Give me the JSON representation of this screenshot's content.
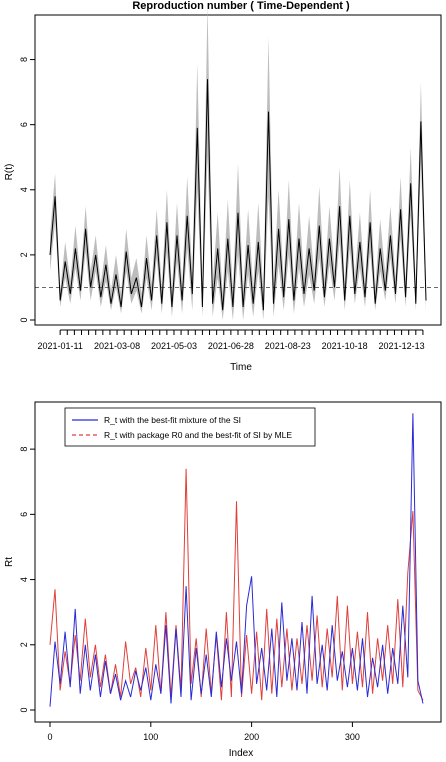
{
  "chart_data": [
    {
      "type": "line",
      "title": "Reproduction number ( Time-Dependent )",
      "xlabel": "Time",
      "ylabel": "R(t)",
      "x_tick_labels": [
        "2021-01-11",
        "2021-03-08",
        "2021-05-03",
        "2021-06-28",
        "2021-08-23",
        "2021-10-18",
        "2021-12-13"
      ],
      "x_range": [
        "2021-01-01",
        "2022-01-08"
      ],
      "ylim": [
        0,
        9
      ],
      "y_ticks": [
        0,
        2,
        4,
        6,
        8
      ],
      "reference_line": 1,
      "grid": false,
      "colors": {
        "estimate": "#000000",
        "band": "#bdbdbd",
        "reference": "#555555"
      },
      "series": [
        {
          "x": [
            "2021-01-01",
            "2021-01-06",
            "2021-01-11",
            "2021-01-16",
            "2021-01-21",
            "2021-01-26",
            "2021-01-31",
            "2021-02-05",
            "2021-02-10",
            "2021-02-15",
            "2021-02-20",
            "2021-02-25",
            "2021-03-02",
            "2021-03-07",
            "2021-03-12",
            "2021-03-17",
            "2021-03-22",
            "2021-03-27",
            "2021-04-01",
            "2021-04-06",
            "2021-04-11",
            "2021-04-16",
            "2021-04-21",
            "2021-04-26",
            "2021-05-01",
            "2021-05-06",
            "2021-05-11",
            "2021-05-16",
            "2021-05-21",
            "2021-05-26",
            "2021-05-31",
            "2021-06-05",
            "2021-06-10",
            "2021-06-15",
            "2021-06-20",
            "2021-06-25",
            "2021-06-30",
            "2021-07-05",
            "2021-07-10",
            "2021-07-15",
            "2021-07-20",
            "2021-07-25",
            "2021-07-30",
            "2021-08-04",
            "2021-08-09",
            "2021-08-14",
            "2021-08-19",
            "2021-08-24",
            "2021-08-29",
            "2021-09-03",
            "2021-09-08",
            "2021-09-13",
            "2021-09-18",
            "2021-09-23",
            "2021-09-28",
            "2021-10-03",
            "2021-10-08",
            "2021-10-13",
            "2021-10-18",
            "2021-10-23",
            "2021-10-28",
            "2021-11-02",
            "2021-11-07",
            "2021-11-12",
            "2021-11-17",
            "2021-11-22",
            "2021-11-27",
            "2021-12-02",
            "2021-12-07",
            "2021-12-12",
            "2021-12-17",
            "2021-12-22",
            "2021-12-27",
            "2022-01-01",
            "2022-01-06"
          ],
          "y": [
            2.0,
            3.8,
            0.6,
            1.8,
            0.8,
            2.2,
            0.9,
            2.8,
            1.0,
            2.0,
            0.7,
            1.7,
            0.5,
            1.4,
            0.4,
            2.1,
            0.8,
            1.3,
            0.4,
            1.9,
            0.6,
            2.6,
            0.5,
            3.0,
            0.4,
            2.6,
            0.6,
            3.2,
            0.8,
            5.9,
            0.4,
            7.4,
            0.5,
            2.2,
            0.3,
            2.5,
            0.4,
            3.3,
            0.4,
            2.3,
            0.5,
            2.4,
            0.3,
            6.4,
            0.5,
            2.8,
            0.7,
            3.1,
            0.6,
            2.5,
            0.8,
            2.2,
            0.9,
            2.9,
            0.7,
            2.5,
            1.0,
            3.5,
            0.6,
            3.2,
            0.8,
            2.4,
            0.7,
            3.0,
            0.5,
            2.2,
            0.9,
            2.6,
            0.8,
            3.4,
            0.7,
            4.2,
            0.5,
            6.1,
            0.6
          ],
          "lower": [
            1.5,
            3.0,
            0.4,
            1.3,
            0.5,
            1.6,
            0.6,
            2.1,
            0.6,
            1.5,
            0.4,
            1.2,
            0.3,
            1.0,
            0.2,
            1.5,
            0.5,
            0.9,
            0.2,
            1.3,
            0.3,
            1.9,
            0.2,
            2.1,
            0.1,
            1.8,
            0.2,
            2.2,
            0.3,
            4.0,
            0.1,
            5.0,
            0.1,
            1.3,
            0.0,
            1.5,
            0.0,
            2.0,
            0.0,
            1.4,
            0.1,
            1.5,
            0.0,
            3.8,
            0.1,
            1.7,
            0.3,
            2.0,
            0.2,
            1.6,
            0.4,
            1.4,
            0.5,
            1.9,
            0.4,
            1.7,
            0.6,
            2.4,
            0.3,
            2.2,
            0.5,
            1.6,
            0.4,
            2.1,
            0.3,
            1.5,
            0.6,
            1.9,
            0.5,
            2.5,
            0.4,
            3.2,
            0.3,
            4.8,
            0.3
          ],
          "upper": [
            2.6,
            4.5,
            0.9,
            2.4,
            1.2,
            2.9,
            1.3,
            3.5,
            1.5,
            2.6,
            1.1,
            2.3,
            0.9,
            2.0,
            0.8,
            2.8,
            1.3,
            1.9,
            0.8,
            2.6,
            1.1,
            3.4,
            1.0,
            4.0,
            0.9,
            3.6,
            1.1,
            4.4,
            1.4,
            7.9,
            0.9,
            9.7,
            1.1,
            3.3,
            0.8,
            3.7,
            0.9,
            4.8,
            0.9,
            3.4,
            1.0,
            3.6,
            0.8,
            8.7,
            1.1,
            4.0,
            1.2,
            4.3,
            1.1,
            3.6,
            1.3,
            3.2,
            1.4,
            4.1,
            1.2,
            3.5,
            1.5,
            4.7,
            1.1,
            4.3,
            1.3,
            3.3,
            1.1,
            4.0,
            1.0,
            3.1,
            1.4,
            3.5,
            1.3,
            4.4,
            1.2,
            5.3,
            1.0,
            7.3,
            1.0
          ]
        }
      ]
    },
    {
      "type": "line",
      "title": "",
      "xlabel": "Index",
      "ylabel": "Rt",
      "xlim": [
        0,
        375
      ],
      "x_ticks": [
        0,
        100,
        200,
        300
      ],
      "ylim": [
        0,
        9.2
      ],
      "y_ticks": [
        0,
        2,
        4,
        6,
        8
      ],
      "grid": false,
      "legend_position": "top-left",
      "series": [
        {
          "name": "R_t with the best-fit mixture of the SI",
          "color": "#2b2bd6",
          "dash": "solid",
          "x": [
            0,
            5,
            10,
            15,
            20,
            25,
            30,
            35,
            40,
            45,
            50,
            55,
            60,
            65,
            70,
            75,
            80,
            85,
            90,
            95,
            100,
            105,
            110,
            115,
            120,
            125,
            130,
            135,
            140,
            145,
            150,
            155,
            160,
            165,
            170,
            175,
            180,
            185,
            190,
            195,
            200,
            205,
            210,
            215,
            220,
            225,
            230,
            235,
            240,
            245,
            250,
            255,
            260,
            265,
            270,
            275,
            280,
            285,
            290,
            295,
            300,
            305,
            310,
            315,
            320,
            325,
            330,
            335,
            340,
            345,
            350,
            355,
            360,
            365,
            370
          ],
          "y": [
            0.1,
            2.1,
            0.8,
            2.4,
            0.7,
            3.1,
            0.5,
            2.0,
            0.6,
            1.7,
            0.4,
            1.5,
            0.5,
            1.1,
            0.3,
            0.9,
            0.4,
            1.2,
            0.6,
            1.3,
            0.3,
            1.4,
            0.5,
            2.6,
            0.2,
            2.5,
            0.4,
            3.8,
            0.3,
            1.9,
            0.5,
            1.7,
            0.4,
            2.4,
            0.7,
            2.2,
            0.9,
            2.1,
            0.5,
            3.2,
            4.1,
            0.8,
            1.9,
            0.6,
            2.5,
            0.4,
            3.3,
            0.9,
            2.2,
            0.6,
            2.7,
            0.5,
            3.5,
            0.8,
            2.0,
            0.6,
            2.6,
            0.9,
            1.8,
            0.7,
            1.9,
            0.6,
            2.2,
            0.4,
            1.6,
            0.7,
            2.0,
            0.5,
            1.9,
            0.8,
            3.2,
            1.0,
            9.1,
            0.9,
            0.2
          ]
        },
        {
          "name": "R_t with package R0 and the best-fit  of SI by MLE",
          "color": "#e0403a",
          "dash": "dashed",
          "x": [
            0,
            5,
            10,
            15,
            20,
            25,
            30,
            35,
            40,
            45,
            50,
            55,
            60,
            65,
            70,
            75,
            80,
            85,
            90,
            95,
            100,
            105,
            110,
            115,
            120,
            125,
            130,
            135,
            140,
            145,
            150,
            155,
            160,
            165,
            170,
            175,
            180,
            185,
            190,
            195,
            200,
            205,
            210,
            215,
            220,
            225,
            230,
            235,
            240,
            245,
            250,
            255,
            260,
            265,
            270,
            275,
            280,
            285,
            290,
            295,
            300,
            305,
            310,
            315,
            320,
            325,
            330,
            335,
            340,
            345,
            350,
            355,
            360,
            365,
            370
          ],
          "y": [
            2.0,
            3.7,
            0.6,
            1.8,
            0.8,
            2.3,
            0.9,
            2.8,
            1.0,
            2.0,
            0.7,
            1.7,
            0.5,
            1.4,
            0.4,
            2.1,
            0.8,
            1.3,
            0.4,
            1.9,
            0.6,
            2.6,
            0.5,
            3.0,
            0.4,
            2.6,
            0.6,
            7.4,
            0.8,
            2.2,
            0.4,
            2.5,
            0.5,
            2.3,
            0.3,
            3.0,
            0.4,
            6.4,
            0.4,
            2.3,
            0.5,
            2.4,
            0.3,
            3.1,
            0.5,
            2.8,
            0.7,
            2.5,
            0.6,
            2.2,
            0.8,
            2.6,
            0.9,
            2.9,
            0.7,
            2.5,
            1.0,
            3.5,
            0.6,
            3.2,
            0.8,
            2.4,
            0.7,
            3.0,
            0.5,
            2.2,
            0.9,
            2.6,
            0.8,
            3.4,
            0.7,
            4.2,
            6.1,
            0.6,
            0.3
          ]
        }
      ]
    }
  ]
}
